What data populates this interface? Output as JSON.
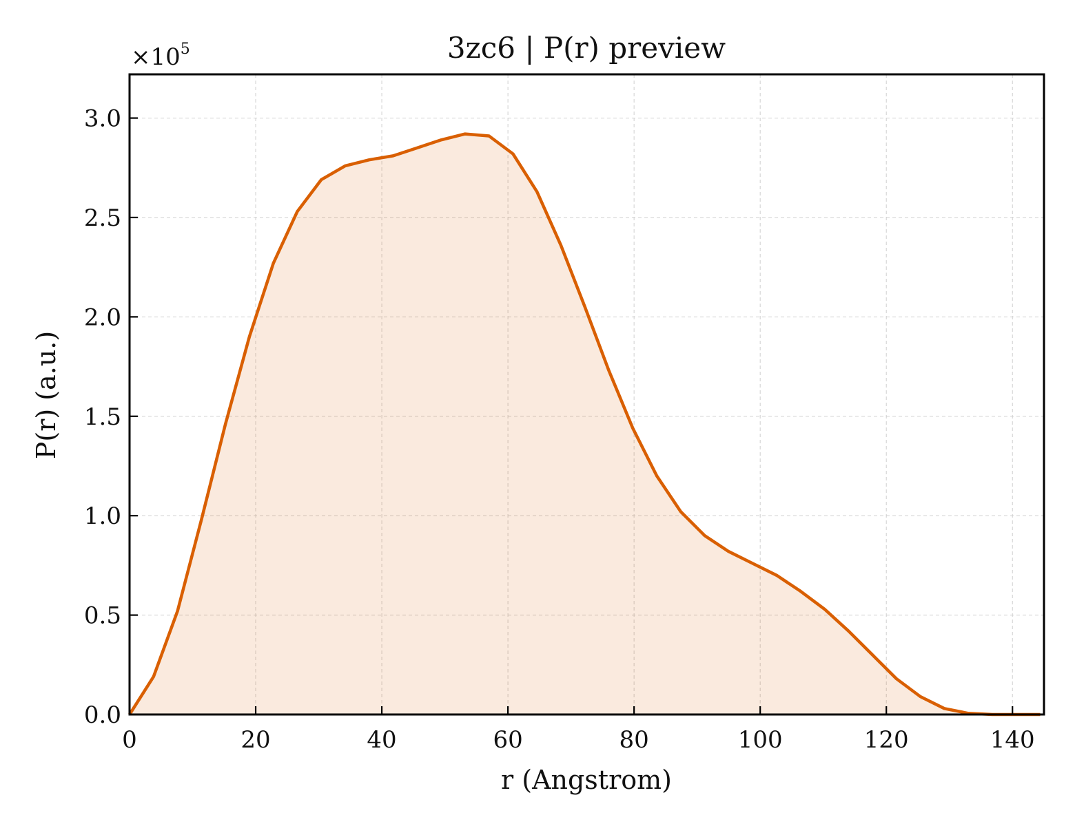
{
  "chart_data": {
    "type": "area",
    "title": "3zc6 | P(r) preview",
    "xlabel": "r (Angstrom)",
    "ylabel": "P(r) (a.u.)",
    "y_multiplier_label": "×10",
    "y_multiplier_exponent": "5",
    "xlim": [
      0,
      145
    ],
    "ylim": [
      0,
      3.22
    ],
    "xticks": [
      0,
      20,
      40,
      60,
      80,
      100,
      120,
      140
    ],
    "xtick_labels": [
      "0",
      "20",
      "40",
      "60",
      "80",
      "100",
      "120",
      "140"
    ],
    "yticks": [
      0,
      0.5,
      1.0,
      1.5,
      2.0,
      2.5,
      3.0
    ],
    "ytick_labels": [
      "0.0",
      "0.5",
      "1.0",
      "1.5",
      "2.0",
      "2.5",
      "3.0"
    ],
    "grid": true,
    "series": [
      {
        "color": "#d95f02",
        "fill_color": "#d95f02",
        "fill_opacity": 0.13,
        "x": [
          0,
          3.8,
          7.6,
          11.4,
          15.2,
          19.0,
          22.8,
          26.6,
          30.4,
          34.2,
          38.0,
          41.8,
          45.6,
          49.4,
          53.2,
          57.0,
          60.8,
          64.6,
          68.4,
          72.2,
          76.0,
          79.8,
          83.6,
          87.4,
          91.2,
          95.0,
          98.8,
          102.6,
          106.4,
          110.2,
          114.0,
          117.8,
          121.6,
          125.4,
          129.2,
          133.0,
          136.8,
          140.6,
          144.4
        ],
        "y": [
          0.0,
          0.19,
          0.52,
          0.98,
          1.46,
          1.9,
          2.27,
          2.53,
          2.69,
          2.76,
          2.79,
          2.81,
          2.85,
          2.89,
          2.92,
          2.91,
          2.82,
          2.63,
          2.36,
          2.05,
          1.73,
          1.44,
          1.2,
          1.02,
          0.9,
          0.82,
          0.76,
          0.7,
          0.62,
          0.53,
          0.42,
          0.3,
          0.18,
          0.09,
          0.03,
          0.006,
          0.0,
          0.0,
          0.0
        ]
      }
    ]
  }
}
